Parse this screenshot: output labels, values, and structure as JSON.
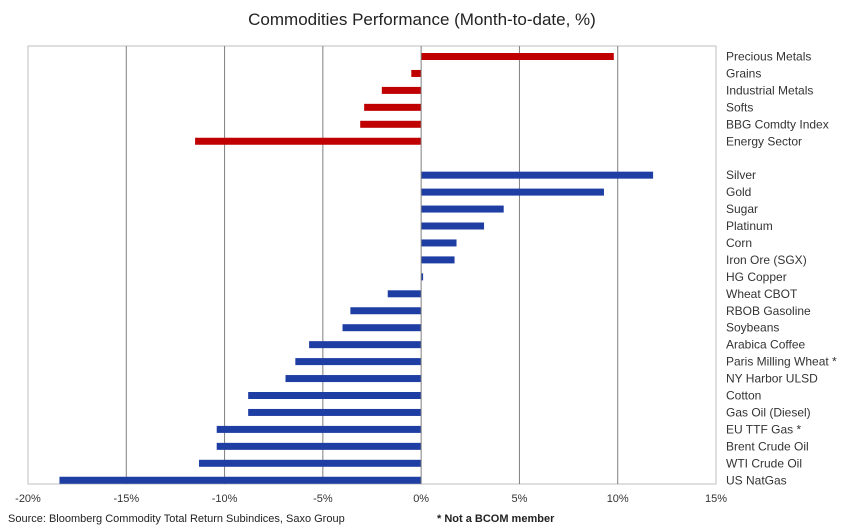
{
  "chart_data": {
    "type": "bar",
    "orientation": "horizontal",
    "title": "Commodities Performance (Month-to-date, %)",
    "xlabel": "",
    "ylabel": "",
    "xlim": [
      -20,
      15
    ],
    "x_ticks": [
      -20,
      -15,
      -10,
      -5,
      0,
      5,
      10,
      15
    ],
    "x_tick_labels": [
      "-20%",
      "-15%",
      "-10%",
      "-5%",
      "0%",
      "5%",
      "10%",
      "15%"
    ],
    "grid": "vertical",
    "legend": "none",
    "groups": [
      {
        "color": "#c00000",
        "categories": [
          "Precious Metals",
          "Grains",
          "Industrial Metals",
          "Softs",
          "BBG Comdty Index",
          "Energy Sector"
        ],
        "values": [
          9.8,
          -0.5,
          -2.0,
          -2.9,
          -3.1,
          -11.5
        ]
      },
      {
        "color": "#1f3ea3",
        "categories": [
          "Silver",
          "Gold",
          "Sugar",
          "Platinum",
          "Corn",
          "Iron Ore (SGX)",
          "HG Copper",
          "Wheat CBOT",
          "RBOB Gasoline",
          "Soybeans",
          "Arabica Coffee",
          "Paris Milling Wheat *",
          "NY Harbor ULSD",
          "Cotton",
          "Gas Oil (Diesel)",
          "EU TTF Gas *",
          "Brent Crude Oil",
          "WTI Crude Oil",
          "US NatGas"
        ],
        "values": [
          11.8,
          9.3,
          4.2,
          3.2,
          1.8,
          1.7,
          0.1,
          -1.7,
          -3.6,
          -4.0,
          -5.7,
          -6.4,
          -6.9,
          -8.8,
          -8.8,
          -10.4,
          -10.4,
          -11.3,
          -18.4
        ]
      }
    ]
  },
  "footer": {
    "source": "Source: Bloomberg Commodity Total Return Subindices, Saxo Group",
    "note": "* Not a BCOM member"
  }
}
